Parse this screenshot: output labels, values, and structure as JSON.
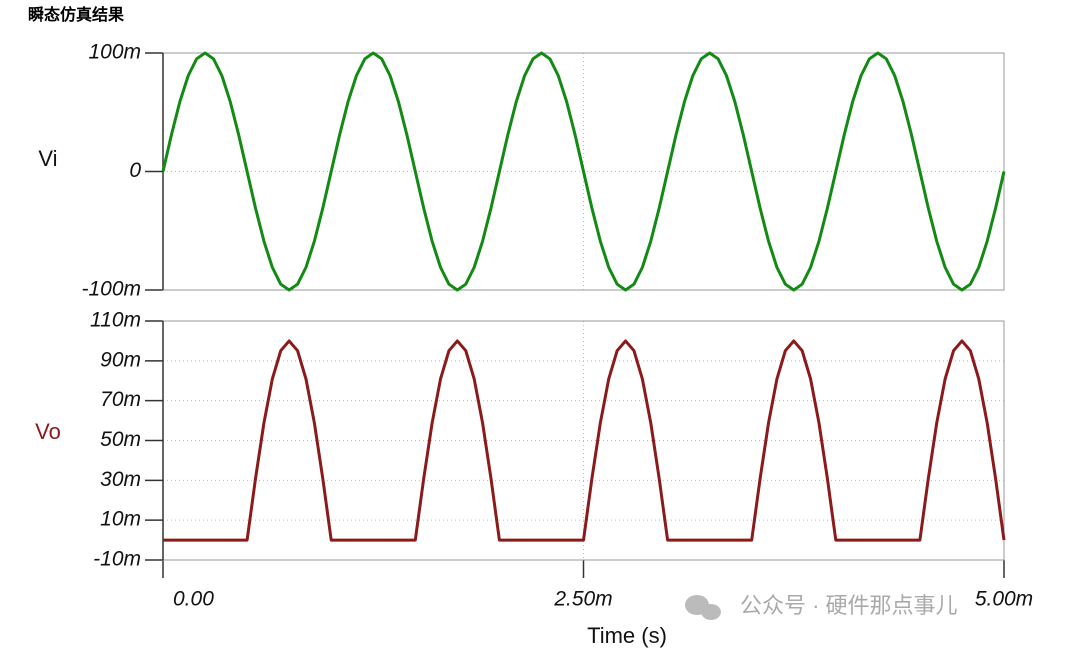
{
  "header": {
    "title": "瞬态仿真结果"
  },
  "watermark": "公众号 · 硬件那点事儿",
  "chart_data": [
    {
      "type": "line",
      "x": [
        0,
        5e-05,
        0.0001,
        0.00015,
        0.0002,
        0.00025,
        0.0003,
        0.00035,
        0.0004,
        0.00045,
        0.0005,
        0.00055,
        0.0006,
        0.00065,
        0.0007,
        0.00075,
        0.0008,
        0.00085,
        0.0009,
        0.00095,
        0.001,
        0.00105,
        0.0011,
        0.00115,
        0.0012,
        0.00125,
        0.0013,
        0.00135,
        0.0014,
        0.00145,
        0.0015,
        0.00155,
        0.0016,
        0.00165,
        0.0017,
        0.00175,
        0.0018,
        0.00185,
        0.0019,
        0.00195,
        0.002,
        0.00205,
        0.0021,
        0.00215,
        0.0022,
        0.00225,
        0.0023,
        0.00235,
        0.0024,
        0.00245,
        0.0025,
        0.00255,
        0.0026,
        0.00265,
        0.0027,
        0.00275,
        0.0028,
        0.00285,
        0.0029,
        0.00295,
        0.003,
        0.00305,
        0.0031,
        0.00315,
        0.0032,
        0.00325,
        0.0033,
        0.00335,
        0.0034,
        0.00345,
        0.0035,
        0.00355,
        0.0036,
        0.00365,
        0.0037,
        0.00375,
        0.0038,
        0.00385,
        0.0039,
        0.00395,
        0.004,
        0.00405,
        0.0041,
        0.00415,
        0.0042,
        0.00425,
        0.0043,
        0.00435,
        0.0044,
        0.00445,
        0.0045,
        0.00455,
        0.0046,
        0.00465,
        0.0047,
        0.00475,
        0.0048,
        0.00485,
        0.0049,
        0.00495,
        0.005
      ],
      "series": [
        {
          "name": "Vi",
          "color": "#138a13",
          "values": [
            0,
            0.0309,
            0.0588,
            0.0809,
            0.0951,
            0.1,
            0.0951,
            0.0809,
            0.0588,
            0.0309,
            0,
            -0.0309,
            -0.0588,
            -0.0809,
            -0.0951,
            -0.1,
            -0.0951,
            -0.0809,
            -0.0588,
            -0.0309,
            0,
            0.0309,
            0.0588,
            0.0809,
            0.0951,
            0.1,
            0.0951,
            0.0809,
            0.0588,
            0.0309,
            0,
            -0.0309,
            -0.0588,
            -0.0809,
            -0.0951,
            -0.1,
            -0.0951,
            -0.0809,
            -0.0588,
            -0.0309,
            0,
            0.0309,
            0.0588,
            0.0809,
            0.0951,
            0.1,
            0.0951,
            0.0809,
            0.0588,
            0.0309,
            0,
            -0.0309,
            -0.0588,
            -0.0809,
            -0.0951,
            -0.1,
            -0.0951,
            -0.0809,
            -0.0588,
            -0.0309,
            0,
            0.0309,
            0.0588,
            0.0809,
            0.0951,
            0.1,
            0.0951,
            0.0809,
            0.0588,
            0.0309,
            0,
            -0.0309,
            -0.0588,
            -0.0809,
            -0.0951,
            -0.1,
            -0.0951,
            -0.0809,
            -0.0588,
            -0.0309,
            0,
            0.0309,
            0.0588,
            0.0809,
            0.0951,
            0.1,
            0.0951,
            0.0809,
            0.0588,
            0.0309,
            0,
            -0.0309,
            -0.0588,
            -0.0809,
            -0.0951,
            -0.1,
            -0.0951,
            -0.0809,
            -0.0588,
            -0.0309,
            0
          ]
        }
      ],
      "xlim": [
        0,
        0.005
      ],
      "xticks": [
        0,
        0.0025,
        0.005
      ],
      "ylim": [
        -0.1,
        0.1
      ],
      "yticks": [
        {
          "value": -0.1,
          "label": "-100m"
        },
        0,
        {
          "value": 0.1,
          "label": "100m"
        }
      ],
      "grid": true
    },
    {
      "type": "line",
      "x": [
        0,
        5e-05,
        0.0001,
        0.00015,
        0.0002,
        0.00025,
        0.0003,
        0.00035,
        0.0004,
        0.00045,
        0.0005,
        0.00055,
        0.0006,
        0.00065,
        0.0007,
        0.00075,
        0.0008,
        0.00085,
        0.0009,
        0.00095,
        0.001,
        0.00105,
        0.0011,
        0.00115,
        0.0012,
        0.00125,
        0.0013,
        0.00135,
        0.0014,
        0.00145,
        0.0015,
        0.00155,
        0.0016,
        0.00165,
        0.0017,
        0.00175,
        0.0018,
        0.00185,
        0.0019,
        0.00195,
        0.002,
        0.00205,
        0.0021,
        0.00215,
        0.0022,
        0.00225,
        0.0023,
        0.00235,
        0.0024,
        0.00245,
        0.0025,
        0.00255,
        0.0026,
        0.00265,
        0.0027,
        0.00275,
        0.0028,
        0.00285,
        0.0029,
        0.00295,
        0.003,
        0.00305,
        0.0031,
        0.00315,
        0.0032,
        0.00325,
        0.0033,
        0.00335,
        0.0034,
        0.00345,
        0.0035,
        0.00355,
        0.0036,
        0.00365,
        0.0037,
        0.00375,
        0.0038,
        0.00385,
        0.0039,
        0.00395,
        0.004,
        0.00405,
        0.0041,
        0.00415,
        0.0042,
        0.00425,
        0.0043,
        0.00435,
        0.0044,
        0.00445,
        0.0045,
        0.00455,
        0.0046,
        0.00465,
        0.0047,
        0.00475,
        0.0048,
        0.00485,
        0.0049,
        0.00495,
        0.005
      ],
      "series": [
        {
          "name": "Vo",
          "color": "#8b1a1a",
          "values": [
            0,
            0,
            0,
            0,
            0,
            0,
            0,
            0,
            0,
            0,
            0,
            0.0309,
            0.0588,
            0.0809,
            0.0951,
            0.1,
            0.0951,
            0.0809,
            0.0588,
            0.0309,
            0,
            0,
            0,
            0,
            0,
            0,
            0,
            0,
            0,
            0,
            0,
            0.0309,
            0.0588,
            0.0809,
            0.0951,
            0.1,
            0.0951,
            0.0809,
            0.0588,
            0.0309,
            0,
            0,
            0,
            0,
            0,
            0,
            0,
            0,
            0,
            0,
            0,
            0.0309,
            0.0588,
            0.0809,
            0.0951,
            0.1,
            0.0951,
            0.0809,
            0.0588,
            0.0309,
            0,
            0,
            0,
            0,
            0,
            0,
            0,
            0,
            0,
            0,
            0,
            0.0309,
            0.0588,
            0.0809,
            0.0951,
            0.1,
            0.0951,
            0.0809,
            0.0588,
            0.0309,
            0,
            0,
            0,
            0,
            0,
            0,
            0,
            0,
            0,
            0,
            0,
            0.0309,
            0.0588,
            0.0809,
            0.0951,
            0.1,
            0.0951,
            0.0809,
            0.0588,
            0.0309,
            0
          ]
        }
      ],
      "xlabel": "Time (s)",
      "xlim": [
        0,
        0.005
      ],
      "xticks": [
        {
          "value": 0,
          "label": "0.00"
        },
        {
          "value": 0.0025,
          "label": "2.50m"
        },
        {
          "value": 0.005,
          "label": "5.00m"
        }
      ],
      "ylim": [
        -0.01,
        0.11
      ],
      "yticks": [
        {
          "value": -0.01,
          "label": "-10m"
        },
        {
          "value": 0.01,
          "label": "10m"
        },
        {
          "value": 0.03,
          "label": "30m"
        },
        {
          "value": 0.05,
          "label": "50m"
        },
        {
          "value": 0.07,
          "label": "70m"
        },
        {
          "value": 0.09,
          "label": "90m"
        },
        {
          "value": 0.11,
          "label": "110m"
        }
      ],
      "grid": true
    }
  ]
}
